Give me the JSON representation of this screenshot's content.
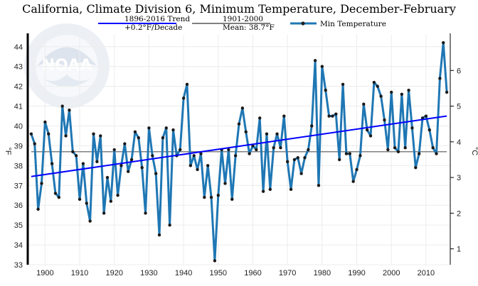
{
  "chart_data": {
    "type": "line",
    "title": "California, Climate Division 6, Minimum Temperature, December-February",
    "ylabel_left": "°F",
    "ylabel_right": "°C",
    "xlabel": "",
    "xlim": [
      1895,
      2017
    ],
    "ylim": [
      33,
      44.6
    ],
    "x_ticks": [
      1900,
      1910,
      1920,
      1930,
      1940,
      1950,
      1960,
      1970,
      1980,
      1990,
      2000,
      2010
    ],
    "y_ticks_left": [
      33,
      34,
      35,
      36,
      37,
      38,
      39,
      40,
      41,
      42,
      43,
      44
    ],
    "y_ticks_right_c": [
      1,
      2,
      3,
      4,
      5,
      6
    ],
    "grid": true,
    "legend": {
      "trend": {
        "label_line1": "1896-2016 Trend",
        "label_line2": "+0.2°F/Decade",
        "color": "#0000ff"
      },
      "mean": {
        "label_line1": "1901-2000",
        "label_line2": "Mean: 38.7°F",
        "color": "#808080"
      },
      "series": {
        "label": "Min Temperature",
        "color": "#1f77b4"
      }
    },
    "trend": {
      "start": [
        1896,
        37.45
      ],
      "end": [
        2016,
        40.5
      ]
    },
    "mean_value": 38.7,
    "series": [
      {
        "name": "Min Temperature",
        "color": "#1f77b4",
        "x": [
          1896,
          1897,
          1898,
          1899,
          1900,
          1901,
          1902,
          1903,
          1904,
          1905,
          1906,
          1907,
          1908,
          1909,
          1910,
          1911,
          1912,
          1913,
          1914,
          1915,
          1916,
          1917,
          1918,
          1919,
          1920,
          1921,
          1922,
          1923,
          1924,
          1925,
          1926,
          1927,
          1928,
          1929,
          1930,
          1931,
          1932,
          1933,
          1934,
          1935,
          1936,
          1937,
          1938,
          1939,
          1940,
          1941,
          1942,
          1943,
          1944,
          1945,
          1946,
          1947,
          1948,
          1949,
          1950,
          1951,
          1952,
          1953,
          1954,
          1955,
          1956,
          1957,
          1958,
          1959,
          1960,
          1961,
          1962,
          1963,
          1964,
          1965,
          1966,
          1967,
          1968,
          1969,
          1970,
          1971,
          1972,
          1973,
          1974,
          1975,
          1976,
          1977,
          1978,
          1979,
          1980,
          1981,
          1982,
          1983,
          1984,
          1985,
          1986,
          1987,
          1988,
          1989,
          1990,
          1991,
          1992,
          1993,
          1994,
          1995,
          1996,
          1997,
          1998,
          1999,
          2000,
          2001,
          2002,
          2003,
          2004,
          2005,
          2006,
          2007,
          2008,
          2009,
          2010,
          2011,
          2012,
          2013,
          2014,
          2015,
          2016
        ],
        "values": [
          39.6,
          39.1,
          35.8,
          37.1,
          40.2,
          39.6,
          38.1,
          36.6,
          36.4,
          41.0,
          39.5,
          40.8,
          38.7,
          38.5,
          36.3,
          38.1,
          36.1,
          35.2,
          39.6,
          38.2,
          39.5,
          35.6,
          37.4,
          36.2,
          38.8,
          36.5,
          38.0,
          39.1,
          37.7,
          38.3,
          39.7,
          39.4,
          37.9,
          35.6,
          39.9,
          38.5,
          37.6,
          34.5,
          39.4,
          39.9,
          35.0,
          39.8,
          38.5,
          38.8,
          41.4,
          42.1,
          38.0,
          38.5,
          37.8,
          38.6,
          36.4,
          38.0,
          36.4,
          33.2,
          36.5,
          38.8,
          37.1,
          38.8,
          36.3,
          38.5,
          40.1,
          40.9,
          39.7,
          38.6,
          39.0,
          38.8,
          40.4,
          36.7,
          39.6,
          36.8,
          38.9,
          39.6,
          38.9,
          40.5,
          38.2,
          36.8,
          38.3,
          38.4,
          37.6,
          38.4,
          38.8,
          40.0,
          43.3,
          37.0,
          43.0,
          41.8,
          40.5,
          40.5,
          40.6,
          38.3,
          42.1,
          38.6,
          38.6,
          37.2,
          37.8,
          38.5,
          41.1,
          39.8,
          39.5,
          42.2,
          42.0,
          41.5,
          40.3,
          38.8,
          41.7,
          38.9,
          38.7,
          41.6,
          38.9,
          41.8,
          39.9,
          37.9,
          38.6,
          40.4,
          40.5,
          39.8,
          38.9,
          38.6,
          42.4,
          44.2,
          41.7
        ]
      }
    ]
  }
}
